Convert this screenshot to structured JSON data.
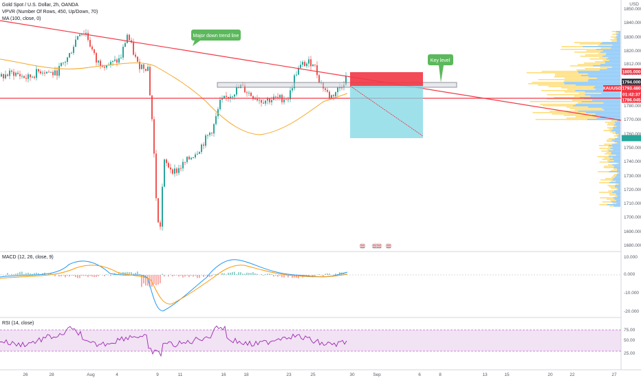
{
  "header": {
    "symbol_title": "Gold Spot / U.S. Dollar, 2h, OANDA",
    "indicator_vpvr": "VPVR (Number Of Rows, 450, Up/Down, 70)",
    "indicator_ma": "MA (100, close, 0)",
    "currency": "USD"
  },
  "price_axis": {
    "ticks": [
      "1850.000",
      "1840.000",
      "1830.000",
      "1820.000",
      "1812.000",
      "1800.000",
      "1794.000",
      "1786.045",
      "1780.000",
      "1770.000",
      "1760.000",
      "1750.000",
      "1740.000",
      "1730.000",
      "1720.000",
      "1710.000",
      "1700.000",
      "1690.000",
      "1680.000"
    ]
  },
  "price_tags": {
    "resistance": {
      "label": "1805.000",
      "color": "#f23645"
    },
    "symbol": {
      "label": "XAUUSD",
      "color": "#f23645"
    },
    "last_price": {
      "label": "1793.480",
      "color": "#f23645"
    },
    "countdown": {
      "label": "01:42:37",
      "color": "#f23645"
    },
    "support": {
      "label": "1786.045",
      "color": "#f23645"
    },
    "level_1794": {
      "label": "1794.000",
      "color": "#2a2e39"
    },
    "level_blank": {
      "label": "",
      "color": "#26a69a"
    }
  },
  "annotations": {
    "trend_line_note": "Major down trend line",
    "key_level_note": "Key level"
  },
  "macd": {
    "legend": "MACD (12, 26, close, 9)",
    "ticks": [
      "10.000",
      "0.000",
      "-10.000",
      "-20.000"
    ]
  },
  "rsi": {
    "legend": "RSI (14, close)",
    "ticks": [
      "75.00",
      "50.00",
      "25.00"
    ]
  },
  "time_axis": {
    "labels": [
      "26",
      "28",
      "Aug",
      "4",
      "9",
      "11",
      "16",
      "18",
      "23",
      "25",
      "30",
      "Sep",
      "6",
      "8",
      "13",
      "15",
      "20",
      "22",
      "27"
    ]
  },
  "colors": {
    "up_candle": "#26a69a",
    "down_candle": "#ef5350",
    "ma_line": "#f5a623",
    "trend_line": "#f23645",
    "stop_zone": "#f23645",
    "target_zone": "#7fd7e4",
    "note_bubble": "#5cb85c",
    "macd_line": "#2196f3",
    "signal_line": "#ff9800",
    "rsi_line": "#9c27b0"
  },
  "icons": {
    "currency_badges": [
      "us-flag-event-icon",
      "us-flag-event-icon",
      "us-flag-event-icon",
      "us-flag-event-icon"
    ]
  }
}
